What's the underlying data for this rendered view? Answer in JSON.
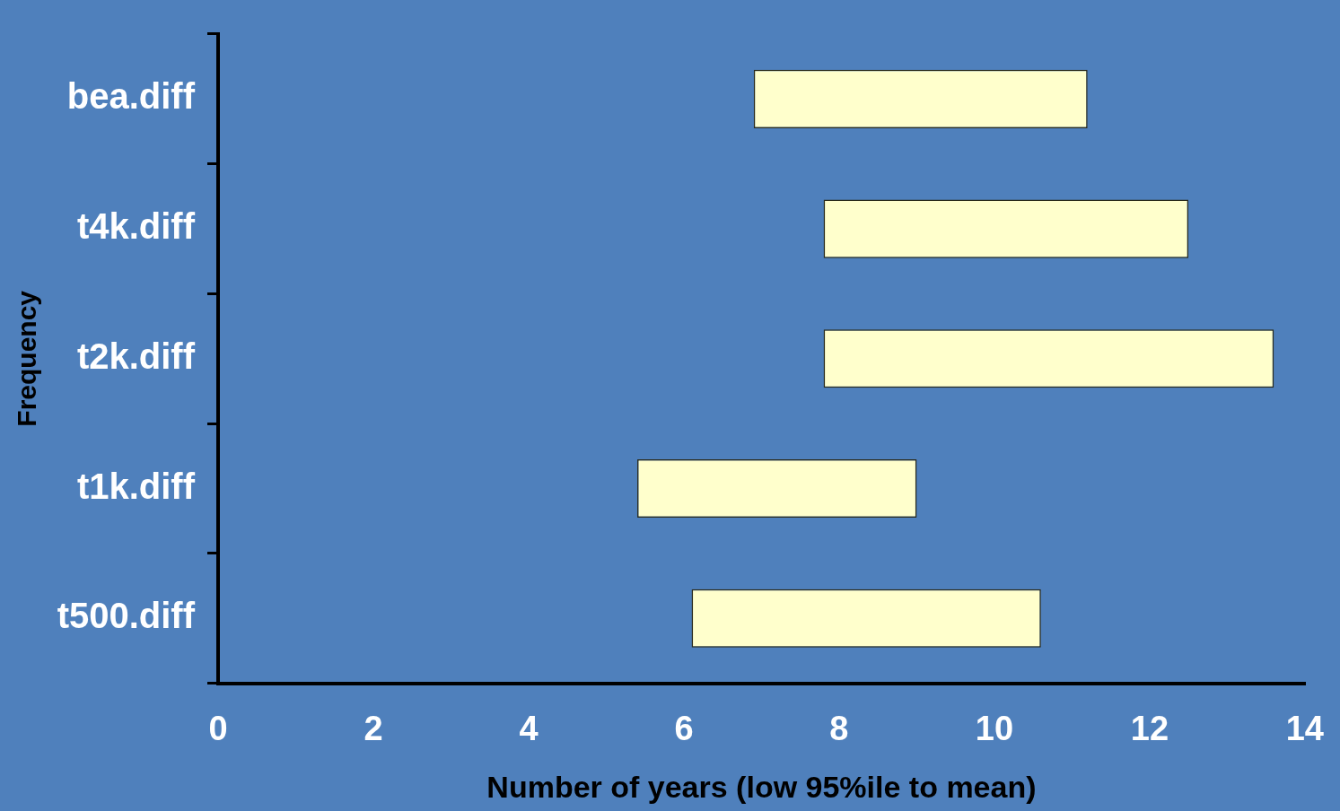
{
  "chart_data": {
    "type": "bar",
    "orientation": "horizontal",
    "categories": [
      "bea.diff",
      "t4k.diff",
      "t2k.diff",
      "t1k.diff",
      "t500.diff"
    ],
    "base": [
      6.9,
      7.8,
      7.8,
      5.4,
      6.1
    ],
    "values": [
      4.3,
      4.7,
      5.8,
      3.6,
      4.5
    ],
    "color": "#ffffcc",
    "xlim": [
      0,
      14
    ],
    "xticks": [
      0,
      2,
      4,
      6,
      8,
      10,
      12,
      14
    ],
    "xlabel": "Number of years (low 95%ile to mean)",
    "ylabel": "Frequency"
  }
}
